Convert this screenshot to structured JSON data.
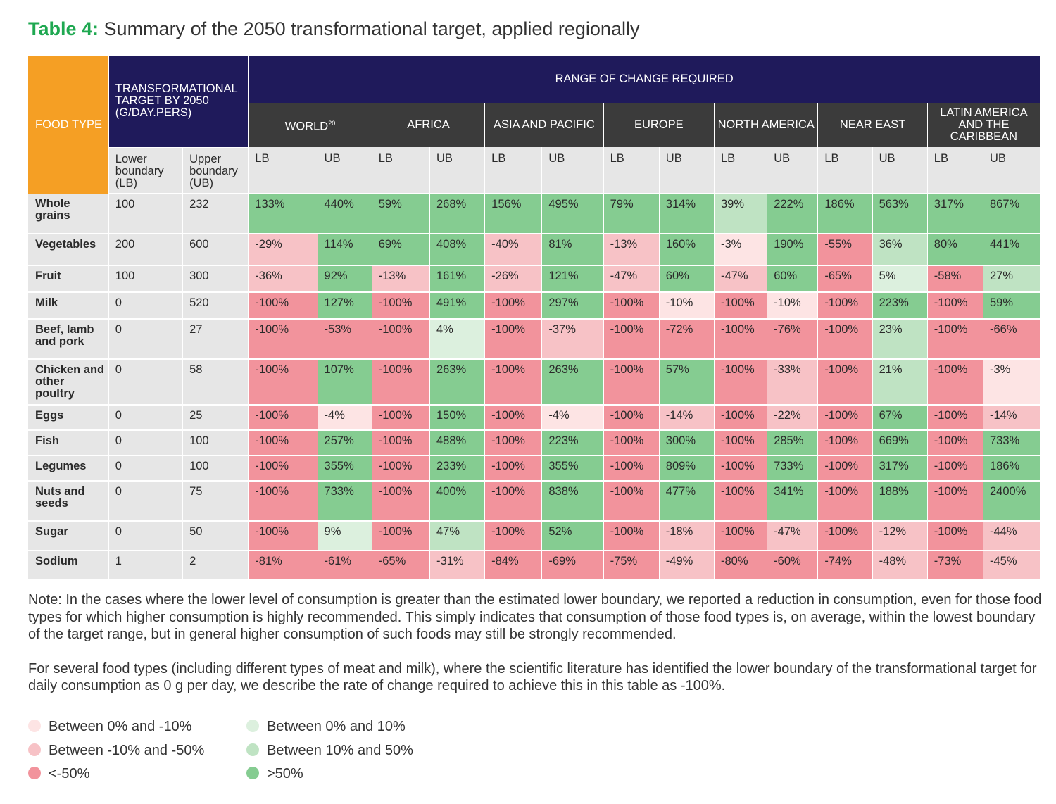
{
  "title": {
    "label": "Table 4:",
    "text": "Summary of the 2050 transformational target, applied regionally"
  },
  "header": {
    "food_type": "FOOD TYPE",
    "target": "TRANSFORMATIONAL TARGET BY 2050 (G/DAY.PERS)",
    "range": "RANGE OF CHANGE REQUIRED",
    "lower_boundary": "Lower boundary (LB)",
    "upper_boundary": "Upper boundary (UB)",
    "lb": "LB",
    "ub": "UB"
  },
  "regions": [
    {
      "name": "WORLD",
      "sup": "20"
    },
    {
      "name": "AFRICA",
      "sup": ""
    },
    {
      "name": "ASIA AND PACIFIC",
      "sup": ""
    },
    {
      "name": "EUROPE",
      "sup": ""
    },
    {
      "name": "NORTH AMERICA",
      "sup": ""
    },
    {
      "name": "NEAR EAST",
      "sup": ""
    },
    {
      "name": "LATIN AMERICA AND THE CARIBBEAN",
      "sup": ""
    }
  ],
  "rows": [
    {
      "food": "Whole grains",
      "lb": "100",
      "ub": "232",
      "values": [
        "133%",
        "440%",
        "59%",
        "268%",
        "156%",
        "495%",
        "79%",
        "314%",
        "39%",
        "222%",
        "186%",
        "563%",
        "317%",
        "867%"
      ]
    },
    {
      "food": "Vegetables",
      "lb": "200",
      "ub": "600",
      "values": [
        "-29%",
        "114%",
        "69%",
        "408%",
        "-40%",
        "81%",
        "-13%",
        "160%",
        "-3%",
        "190%",
        "-55%",
        "36%",
        "80%",
        "441%"
      ]
    },
    {
      "food": "Fruit",
      "lb": "100",
      "ub": "300",
      "values": [
        "-36%",
        "92%",
        "-13%",
        "161%",
        "-26%",
        "121%",
        "-47%",
        "60%",
        "-47%",
        "60%",
        "-65%",
        "5%",
        "-58%",
        "27%"
      ]
    },
    {
      "food": "Milk",
      "lb": "0",
      "ub": "520",
      "values": [
        "-100%",
        "127%",
        "-100%",
        "491%",
        "-100%",
        "297%",
        "-100%",
        "-10%",
        "-100%",
        "-10%",
        "-100%",
        "223%",
        "-100%",
        "59%"
      ]
    },
    {
      "food": "Beef, lamb and pork",
      "lb": "0",
      "ub": "27",
      "values": [
        "-100%",
        "-53%",
        "-100%",
        "4%",
        "-100%",
        "-37%",
        "-100%",
        "-72%",
        "-100%",
        "-76%",
        "-100%",
        "23%",
        "-100%",
        "-66%"
      ]
    },
    {
      "food": "Chicken and other poultry",
      "lb": "0",
      "ub": "58",
      "values": [
        "-100%",
        "107%",
        "-100%",
        "263%",
        "-100%",
        "263%",
        "-100%",
        "57%",
        "-100%",
        "-33%",
        "-100%",
        "21%",
        "-100%",
        "-3%"
      ]
    },
    {
      "food": "Eggs",
      "lb": "0",
      "ub": "25",
      "values": [
        "-100%",
        "-4%",
        "-100%",
        "150%",
        "-100%",
        "-4%",
        "-100%",
        "-14%",
        "-100%",
        "-22%",
        "-100%",
        "67%",
        "-100%",
        "-14%"
      ]
    },
    {
      "food": "Fish",
      "lb": "0",
      "ub": "100",
      "values": [
        "-100%",
        "257%",
        "-100%",
        "488%",
        "-100%",
        "223%",
        "-100%",
        "300%",
        "-100%",
        "285%",
        "-100%",
        "669%",
        "-100%",
        "733%"
      ]
    },
    {
      "food": "Legumes",
      "lb": "0",
      "ub": "100",
      "values": [
        "-100%",
        "355%",
        "-100%",
        "233%",
        "-100%",
        "355%",
        "-100%",
        "809%",
        "-100%",
        "733%",
        "-100%",
        "317%",
        "-100%",
        "186%"
      ]
    },
    {
      "food": "Nuts and seeds",
      "lb": "0",
      "ub": "75",
      "values": [
        "-100%",
        "733%",
        "-100%",
        "400%",
        "-100%",
        "838%",
        "-100%",
        "477%",
        "-100%",
        "341%",
        "-100%",
        "188%",
        "-100%",
        "2400%"
      ]
    },
    {
      "food": "Sugar",
      "lb": "0",
      "ub": "50",
      "values": [
        "-100%",
        "9%",
        "-100%",
        "47%",
        "-100%",
        "52%",
        "-100%",
        "-18%",
        "-100%",
        "-47%",
        "-100%",
        "-12%",
        "-100%",
        "-44%"
      ]
    },
    {
      "food": "Sodium",
      "lb": "1",
      "ub": "2",
      "values": [
        "-81%",
        "-61%",
        "-65%",
        "-31%",
        "-84%",
        "-69%",
        "-75%",
        "-49%",
        "-80%",
        "-60%",
        "-74%",
        "-48%",
        "-73%",
        "-45%"
      ]
    }
  ],
  "notes": [
    "Note: In the cases where the lower level of consumption is greater than the estimated lower boundary, we reported a reduction in consumption, even for those food types for which higher consumption is highly recommended. This simply indicates that consumption of those food types is, on average, within the lowest boundary of the target range, but in general higher consumption of such foods may still be strongly recommended.",
    "For several food types (including different types of meat and milk), where the scientific literature has identified the lower boundary of the transformational target for daily consumption as 0 g per day, we describe the rate of change required to achieve this in this table as -100%."
  ],
  "legend": [
    {
      "label": "Between 0% and -10%",
      "color": "#fde4e4"
    },
    {
      "label": "Between -10% and -50%",
      "color": "#f7c2c6"
    },
    {
      "label": "<-50%",
      "color": "#f2939c"
    },
    {
      "label": "Between 0% and 10%",
      "color": "#dcf0de"
    },
    {
      "label": "Between 10% and 50%",
      "color": "#bfe3c3"
    },
    {
      "label": ">50%",
      "color": "#85cc91"
    }
  ]
}
